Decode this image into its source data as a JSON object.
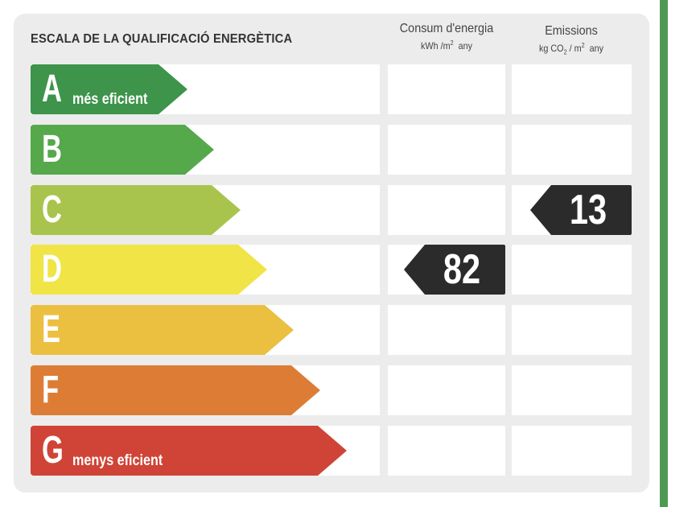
{
  "title": "ESCALA DE LA QUALIFICACIÓ ENERGÈTICA",
  "columns": {
    "energy": {
      "title": "Consum d'energia",
      "unit_a": "kWh /m",
      "unit_sup": "2",
      "unit_b": "any"
    },
    "emissions": {
      "title": "Emissions",
      "unit_a": "kg CO",
      "unit_sub": "2",
      "unit_mid": " / m",
      "unit_sup": "2",
      "unit_b": "any"
    }
  },
  "classes": [
    {
      "letter": "A",
      "label": "més eficient",
      "color": "#3d944a"
    },
    {
      "letter": "B",
      "label": "",
      "color": "#55a94b"
    },
    {
      "letter": "C",
      "label": "",
      "color": "#a9c44c"
    },
    {
      "letter": "D",
      "label": "",
      "color": "#f0e446"
    },
    {
      "letter": "E",
      "label": "",
      "color": "#ebbf40"
    },
    {
      "letter": "F",
      "label": "",
      "color": "#dd7d35"
    },
    {
      "letter": "G",
      "label": "menys eficient",
      "color": "#cf4436"
    }
  ],
  "ratings": {
    "energy": {
      "value": "82",
      "class": "D"
    },
    "emissions": {
      "value": "13",
      "class": "C"
    }
  },
  "badge_color": "#2b2b2b",
  "border_color": "#4f9a52"
}
